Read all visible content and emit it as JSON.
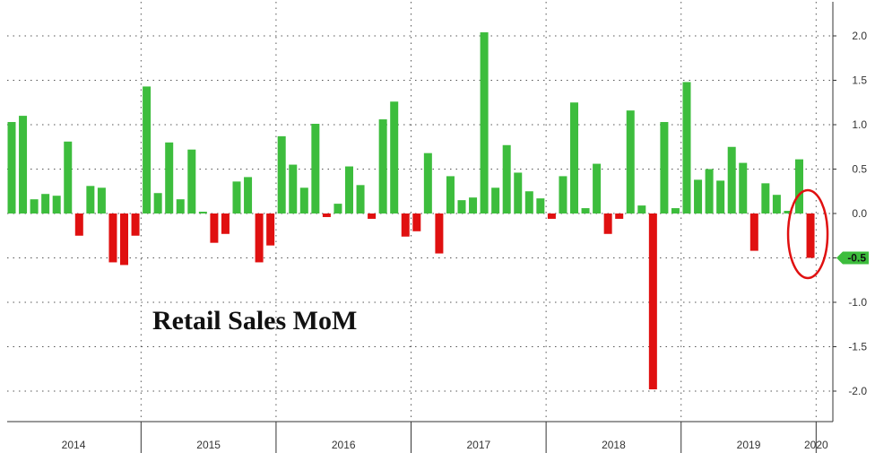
{
  "chart_data": {
    "type": "bar",
    "title": "Retail Sales MoM",
    "xlabel": "",
    "ylabel": "",
    "ylim": [
      -2.35,
      2.35
    ],
    "yticks": [
      2.0,
      1.5,
      1.0,
      0.5,
      0.0,
      -0.5,
      -1.0,
      -1.5,
      -2.0
    ],
    "ytick_labels": [
      "2.0",
      "1.5",
      "1.0",
      "0.5",
      "0.0",
      "-0.5",
      "-1.0",
      "-1.5",
      "-2.0"
    ],
    "year_labels": [
      "2014",
      "2015",
      "2016",
      "2017",
      "2018",
      "2019",
      "2020"
    ],
    "year_first_month_index": [
      0,
      12,
      24,
      36,
      48,
      60,
      72
    ],
    "grid": true,
    "legend": "none",
    "last_value_label": "-0.5",
    "positive_color": "#3dbd3d",
    "negative_color": "#e01010",
    "highlight_color": "#e01010",
    "values": [
      1.03,
      1.1,
      0.16,
      0.22,
      0.2,
      0.81,
      -0.25,
      0.31,
      0.29,
      -0.55,
      -0.58,
      -0.25,
      1.43,
      0.23,
      0.8,
      0.16,
      0.72,
      0.02,
      -0.33,
      -0.23,
      0.36,
      0.41,
      -0.55,
      -0.36,
      0.87,
      0.55,
      0.29,
      1.01,
      -0.04,
      0.11,
      0.53,
      0.32,
      -0.06,
      1.06,
      1.26,
      -0.26,
      -0.2,
      0.68,
      -0.45,
      0.42,
      0.15,
      0.18,
      2.04,
      0.29,
      0.77,
      0.46,
      0.25,
      0.17,
      -0.06,
      0.42,
      1.25,
      0.06,
      0.56,
      -0.23,
      -0.06,
      1.16,
      0.09,
      -1.98,
      1.03,
      0.06,
      1.48,
      0.38,
      0.5,
      0.37,
      0.75,
      0.57,
      -0.42,
      0.34,
      0.21,
      0.03,
      0.61,
      -0.5
    ]
  }
}
